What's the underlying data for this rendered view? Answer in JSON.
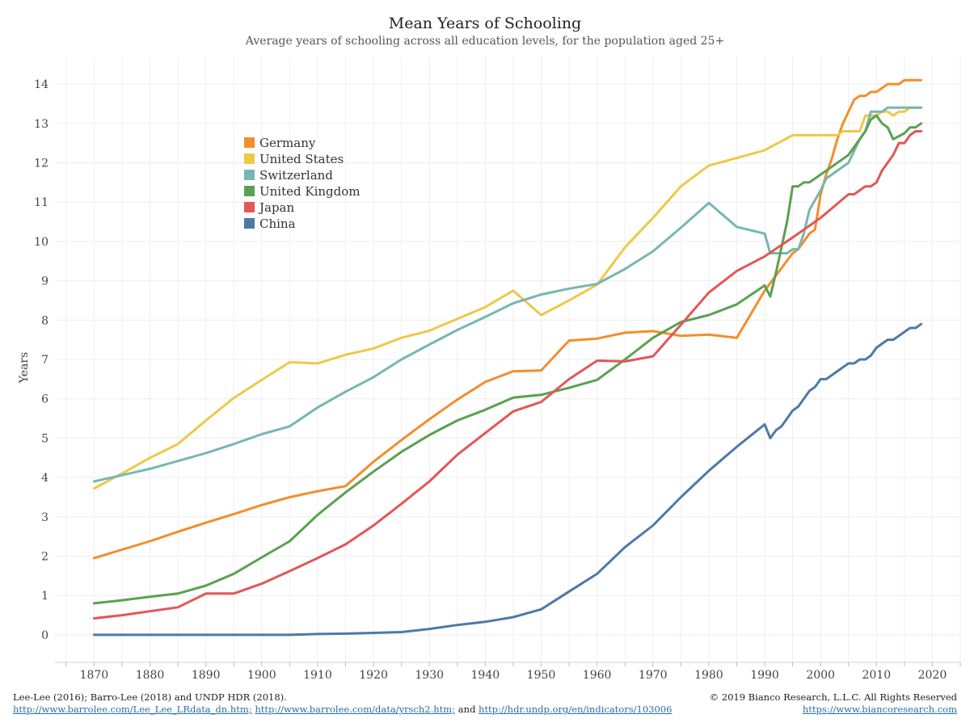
{
  "chart_data": {
    "type": "line",
    "title": "Mean Years of Schooling",
    "subtitle": "Average years of schooling across all education levels, for the population aged 25+",
    "ylabel": "Years",
    "xlabel": "",
    "xlim": [
      1863,
      2025
    ],
    "ylim": [
      -0.7,
      14.7
    ],
    "x_ticks": [
      "1870",
      "1880",
      "1890",
      "1900",
      "1910",
      "1920",
      "1930",
      "1940",
      "1950",
      "1960",
      "1970",
      "1980",
      "1990",
      "2000",
      "2010",
      "2020"
    ],
    "y_ticks": [
      "0",
      "1",
      "2",
      "3",
      "4",
      "5",
      "6",
      "7",
      "8",
      "9",
      "10",
      "11",
      "12",
      "13",
      "14"
    ],
    "legend_position": "upper-left",
    "grid": true,
    "series": [
      {
        "name": "Germany",
        "color": "#f28e2b",
        "points": [
          [
            1870,
            1.95
          ],
          [
            1880,
            2.38
          ],
          [
            1885,
            2.62
          ],
          [
            1890,
            2.85
          ],
          [
            1895,
            3.07
          ],
          [
            1900,
            3.3
          ],
          [
            1905,
            3.5
          ],
          [
            1910,
            3.65
          ],
          [
            1915,
            3.78
          ],
          [
            1920,
            4.4
          ],
          [
            1925,
            4.95
          ],
          [
            1930,
            5.48
          ],
          [
            1935,
            5.98
          ],
          [
            1940,
            6.43
          ],
          [
            1945,
            6.7
          ],
          [
            1950,
            6.72
          ],
          [
            1955,
            7.48
          ],
          [
            1960,
            7.53
          ],
          [
            1965,
            7.68
          ],
          [
            1970,
            7.72
          ],
          [
            1975,
            7.6
          ],
          [
            1980,
            7.63
          ],
          [
            1985,
            7.55
          ],
          [
            1990,
            8.75
          ],
          [
            1995,
            9.7
          ],
          [
            1996,
            9.8
          ],
          [
            1998,
            10.2
          ],
          [
            1999,
            10.3
          ],
          [
            2000,
            11.2
          ],
          [
            2001,
            11.7
          ],
          [
            2002,
            12.1
          ],
          [
            2003,
            12.6
          ],
          [
            2004,
            13.0
          ],
          [
            2005,
            13.3
          ],
          [
            2006,
            13.6
          ],
          [
            2007,
            13.7
          ],
          [
            2008,
            13.7
          ],
          [
            2009,
            13.8
          ],
          [
            2010,
            13.8
          ],
          [
            2011,
            13.9
          ],
          [
            2012,
            14.0
          ],
          [
            2014,
            14.0
          ],
          [
            2015,
            14.1
          ],
          [
            2018,
            14.1
          ]
        ]
      },
      {
        "name": "United States",
        "color": "#edc948",
        "points": [
          [
            1870,
            3.72
          ],
          [
            1875,
            4.1
          ],
          [
            1880,
            4.5
          ],
          [
            1885,
            4.85
          ],
          [
            1890,
            5.45
          ],
          [
            1895,
            6.02
          ],
          [
            1900,
            6.48
          ],
          [
            1905,
            6.93
          ],
          [
            1910,
            6.9
          ],
          [
            1915,
            7.12
          ],
          [
            1920,
            7.28
          ],
          [
            1925,
            7.55
          ],
          [
            1930,
            7.73
          ],
          [
            1935,
            8.03
          ],
          [
            1940,
            8.33
          ],
          [
            1945,
            8.75
          ],
          [
            1950,
            8.13
          ],
          [
            1955,
            8.5
          ],
          [
            1960,
            8.9
          ],
          [
            1965,
            9.85
          ],
          [
            1970,
            10.6
          ],
          [
            1975,
            11.4
          ],
          [
            1980,
            11.93
          ],
          [
            1985,
            12.12
          ],
          [
            1990,
            12.32
          ],
          [
            1995,
            12.7
          ],
          [
            2003,
            12.7
          ],
          [
            2004,
            12.8
          ],
          [
            2007,
            12.8
          ],
          [
            2008,
            13.2
          ],
          [
            2010,
            13.2
          ],
          [
            2011,
            13.3
          ],
          [
            2012,
            13.3
          ],
          [
            2013,
            13.2
          ],
          [
            2014,
            13.3
          ],
          [
            2015,
            13.3
          ],
          [
            2016,
            13.4
          ],
          [
            2018,
            13.4
          ]
        ]
      },
      {
        "name": "Switzerland",
        "color": "#76b7b2",
        "points": [
          [
            1870,
            3.9
          ],
          [
            1880,
            4.22
          ],
          [
            1890,
            4.62
          ],
          [
            1895,
            4.85
          ],
          [
            1900,
            5.1
          ],
          [
            1905,
            5.3
          ],
          [
            1910,
            5.78
          ],
          [
            1915,
            6.18
          ],
          [
            1920,
            6.55
          ],
          [
            1925,
            7.0
          ],
          [
            1930,
            7.38
          ],
          [
            1935,
            7.75
          ],
          [
            1940,
            8.08
          ],
          [
            1945,
            8.43
          ],
          [
            1950,
            8.65
          ],
          [
            1955,
            8.8
          ],
          [
            1960,
            8.92
          ],
          [
            1965,
            9.3
          ],
          [
            1970,
            9.75
          ],
          [
            1975,
            10.35
          ],
          [
            1980,
            10.98
          ],
          [
            1985,
            10.37
          ],
          [
            1990,
            10.2
          ],
          [
            1991,
            9.7
          ],
          [
            1994,
            9.7
          ],
          [
            1995,
            9.8
          ],
          [
            1996,
            9.8
          ],
          [
            1997,
            10.2
          ],
          [
            1998,
            10.8
          ],
          [
            2000,
            11.3
          ],
          [
            2001,
            11.6
          ],
          [
            2005,
            12.0
          ],
          [
            2007,
            12.6
          ],
          [
            2008,
            12.8
          ],
          [
            2009,
            13.3
          ],
          [
            2011,
            13.3
          ],
          [
            2012,
            13.4
          ],
          [
            2018,
            13.4
          ]
        ]
      },
      {
        "name": "United Kingdom",
        "color": "#59a14f",
        "points": [
          [
            1870,
            0.8
          ],
          [
            1875,
            0.88
          ],
          [
            1880,
            0.97
          ],
          [
            1885,
            1.05
          ],
          [
            1890,
            1.25
          ],
          [
            1895,
            1.55
          ],
          [
            1900,
            1.97
          ],
          [
            1905,
            2.38
          ],
          [
            1910,
            3.05
          ],
          [
            1915,
            3.62
          ],
          [
            1920,
            4.15
          ],
          [
            1925,
            4.65
          ],
          [
            1930,
            5.08
          ],
          [
            1935,
            5.45
          ],
          [
            1940,
            5.72
          ],
          [
            1945,
            6.03
          ],
          [
            1950,
            6.1
          ],
          [
            1955,
            6.28
          ],
          [
            1960,
            6.48
          ],
          [
            1965,
            7.0
          ],
          [
            1970,
            7.55
          ],
          [
            1975,
            7.95
          ],
          [
            1980,
            8.13
          ],
          [
            1985,
            8.4
          ],
          [
            1990,
            8.88
          ],
          [
            1991,
            8.6
          ],
          [
            1992,
            9.2
          ],
          [
            1994,
            10.5
          ],
          [
            1995,
            11.4
          ],
          [
            1996,
            11.4
          ],
          [
            1997,
            11.5
          ],
          [
            1998,
            11.5
          ],
          [
            2000,
            11.7
          ],
          [
            2005,
            12.2
          ],
          [
            2007,
            12.6
          ],
          [
            2008,
            12.8
          ],
          [
            2009,
            13.1
          ],
          [
            2010,
            13.2
          ],
          [
            2011,
            13.0
          ],
          [
            2012,
            12.9
          ],
          [
            2013,
            12.6
          ],
          [
            2015,
            12.75
          ],
          [
            2016,
            12.9
          ],
          [
            2017,
            12.9
          ],
          [
            2018,
            13.0
          ]
        ]
      },
      {
        "name": "Japan",
        "color": "#e15759",
        "points": [
          [
            1870,
            0.42
          ],
          [
            1875,
            0.5
          ],
          [
            1880,
            0.6
          ],
          [
            1885,
            0.7
          ],
          [
            1890,
            1.05
          ],
          [
            1895,
            1.05
          ],
          [
            1900,
            1.3
          ],
          [
            1905,
            1.62
          ],
          [
            1910,
            1.95
          ],
          [
            1915,
            2.3
          ],
          [
            1920,
            2.78
          ],
          [
            1925,
            3.33
          ],
          [
            1930,
            3.9
          ],
          [
            1935,
            4.58
          ],
          [
            1940,
            5.13
          ],
          [
            1945,
            5.68
          ],
          [
            1950,
            5.92
          ],
          [
            1955,
            6.5
          ],
          [
            1960,
            6.97
          ],
          [
            1965,
            6.95
          ],
          [
            1970,
            7.08
          ],
          [
            1975,
            7.88
          ],
          [
            1980,
            8.7
          ],
          [
            1985,
            9.25
          ],
          [
            1990,
            9.62
          ],
          [
            1995,
            10.1
          ],
          [
            2000,
            10.6
          ],
          [
            2005,
            11.2
          ],
          [
            2006,
            11.2
          ],
          [
            2007,
            11.3
          ],
          [
            2008,
            11.4
          ],
          [
            2009,
            11.4
          ],
          [
            2010,
            11.5
          ],
          [
            2011,
            11.8
          ],
          [
            2012,
            12.0
          ],
          [
            2013,
            12.2
          ],
          [
            2014,
            12.5
          ],
          [
            2015,
            12.5
          ],
          [
            2016,
            12.7
          ],
          [
            2017,
            12.8
          ],
          [
            2018,
            12.8
          ]
        ]
      },
      {
        "name": "China",
        "color": "#4e79a7",
        "points": [
          [
            1870,
            0.0
          ],
          [
            1880,
            0.0
          ],
          [
            1890,
            0.0
          ],
          [
            1900,
            0.0
          ],
          [
            1905,
            0.0
          ],
          [
            1910,
            0.02
          ],
          [
            1915,
            0.03
          ],
          [
            1920,
            0.05
          ],
          [
            1925,
            0.07
          ],
          [
            1930,
            0.15
          ],
          [
            1935,
            0.25
          ],
          [
            1940,
            0.33
          ],
          [
            1945,
            0.45
          ],
          [
            1950,
            0.65
          ],
          [
            1955,
            1.1
          ],
          [
            1960,
            1.55
          ],
          [
            1965,
            2.23
          ],
          [
            1970,
            2.78
          ],
          [
            1975,
            3.5
          ],
          [
            1980,
            4.17
          ],
          [
            1985,
            4.78
          ],
          [
            1990,
            5.35
          ],
          [
            1991,
            5.0
          ],
          [
            1992,
            5.2
          ],
          [
            1993,
            5.3
          ],
          [
            1994,
            5.5
          ],
          [
            1995,
            5.7
          ],
          [
            1996,
            5.8
          ],
          [
            1997,
            6.0
          ],
          [
            1998,
            6.2
          ],
          [
            1999,
            6.3
          ],
          [
            2000,
            6.5
          ],
          [
            2001,
            6.5
          ],
          [
            2002,
            6.6
          ],
          [
            2003,
            6.7
          ],
          [
            2004,
            6.8
          ],
          [
            2005,
            6.9
          ],
          [
            2006,
            6.9
          ],
          [
            2007,
            7.0
          ],
          [
            2008,
            7.0
          ],
          [
            2009,
            7.1
          ],
          [
            2010,
            7.3
          ],
          [
            2011,
            7.4
          ],
          [
            2012,
            7.5
          ],
          [
            2013,
            7.5
          ],
          [
            2014,
            7.6
          ],
          [
            2015,
            7.7
          ],
          [
            2016,
            7.8
          ],
          [
            2017,
            7.8
          ],
          [
            2018,
            7.9
          ]
        ]
      }
    ]
  },
  "footer": {
    "source_text": "Lee-Lee (2016); Barro-Lee (2018) and UNDP HDR (2018).",
    "link1": "http://www.barrolee.com/Lee_Lee_LRdata_dn.htm;",
    "link2": "http://www.barrolee.com/data/yrsch2.htm;",
    "and_text": "and",
    "link3": "http://hdr.undp.org/en/indicators/103006",
    "copyright": "© 2019 Bianco Research, L.L.C. All Rights Reserved",
    "site_link": "https://www.biancoresearch.com"
  }
}
